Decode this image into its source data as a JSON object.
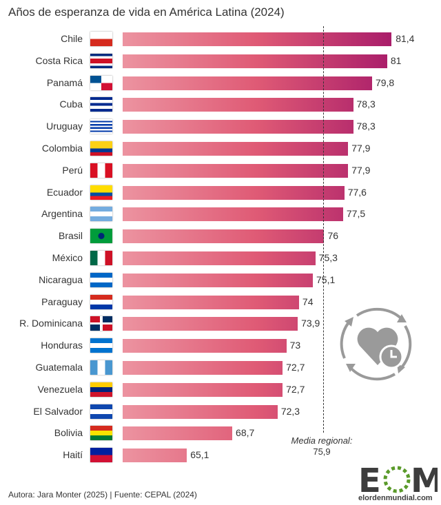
{
  "title": "Años de esperanza de vida en América Latina (2024)",
  "footer": "Autora: Jara Monter (2025) | Fuente: CEPAL (2024)",
  "logo": {
    "text": "EOM",
    "url_text": "elordenmundial.com"
  },
  "colors": {
    "bar_start": "#ec93a0",
    "bar_mid": "#df5a75",
    "bar_end": "#a91d6a",
    "logo_green": "#5a9a2a",
    "logo_gray": "#3d3d3d",
    "icon_gray": "#9a9a9a"
  },
  "chart_data": {
    "type": "bar",
    "orientation": "horizontal",
    "title": "Años de esperanza de vida en América Latina (2024)",
    "categories": [
      "Chile",
      "Costa Rica",
      "Panamá",
      "Cuba",
      "Uruguay",
      "Colombia",
      "Perú",
      "Ecuador",
      "Argentina",
      "Brasil",
      "México",
      "Nicaragua",
      "Paraguay",
      "R. Dominicana",
      "Honduras",
      "Guatemala",
      "Venezuela",
      "El Salvador",
      "Bolivia",
      "Haití"
    ],
    "values": [
      81.4,
      81,
      79.8,
      78.3,
      78.3,
      77.9,
      77.9,
      77.6,
      77.5,
      76,
      75.3,
      75.1,
      74,
      73.9,
      73,
      72.7,
      72.7,
      72.3,
      68.7,
      65.1
    ],
    "value_labels": [
      "81,4",
      "81",
      "79,8",
      "78,3",
      "78,3",
      "77,9",
      "77,9",
      "77,6",
      "77,5",
      "76",
      "75,3",
      "75,1",
      "74",
      "73,9",
      "73",
      "72,7",
      "72,7",
      "72,3",
      "68,7",
      "65,1"
    ],
    "xlim": [
      60,
      81.4
    ],
    "grid": false,
    "reference_line": {
      "value": 75.9,
      "label": "Media regional:",
      "value_label": "75,9"
    }
  }
}
